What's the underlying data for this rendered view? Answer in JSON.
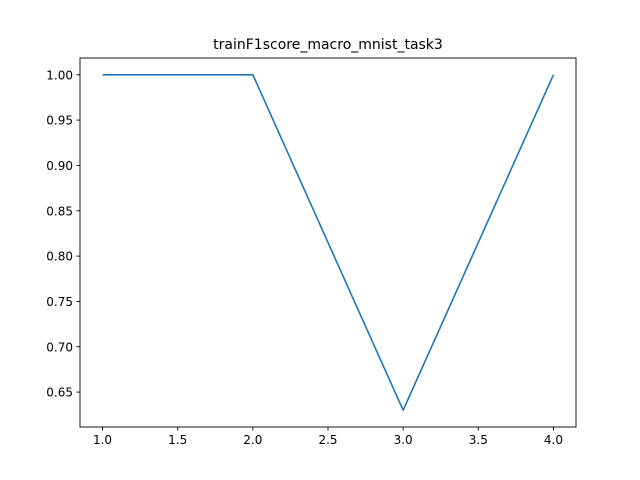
{
  "chart_data": {
    "type": "line",
    "title": "trainF1score_macro_mnist_task3",
    "xlabel": "",
    "ylabel": "",
    "xlim": [
      0.85,
      4.15
    ],
    "ylim": [
      0.6115,
      1.0185
    ],
    "xticks": [
      1.0,
      1.5,
      2.0,
      2.5,
      3.0,
      3.5,
      4.0
    ],
    "xtick_labels": [
      "1.0",
      "1.5",
      "2.0",
      "2.5",
      "3.0",
      "3.5",
      "4.0"
    ],
    "yticks": [
      0.65,
      0.7,
      0.75,
      0.8,
      0.85,
      0.9,
      0.95,
      1.0
    ],
    "ytick_labels": [
      "0.65",
      "0.70",
      "0.75",
      "0.80",
      "0.85",
      "0.90",
      "0.95",
      "1.00"
    ],
    "grid": false,
    "series": [
      {
        "color": "#1f77b4",
        "x": [
          1,
          2,
          3,
          4
        ],
        "y": [
          1.0,
          1.0,
          0.63,
          1.0
        ]
      }
    ]
  }
}
